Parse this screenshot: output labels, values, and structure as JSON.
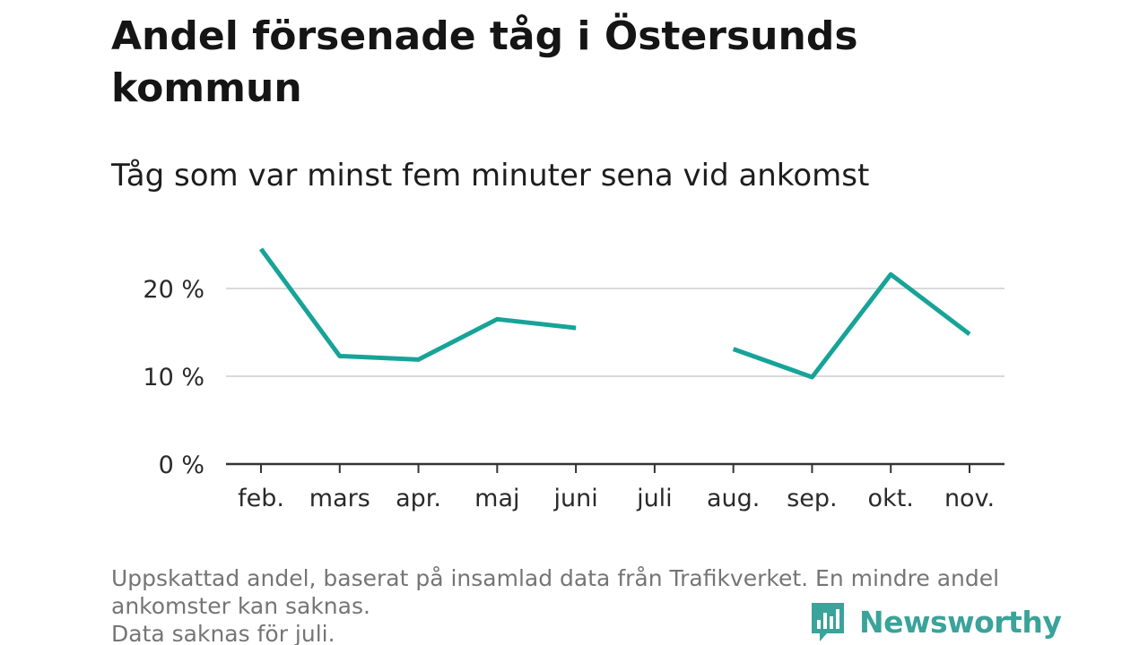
{
  "title": "Andel försenade tåg i Östersunds kommun",
  "subtitle": "Tåg som var minst fem minuter sena vid ankomst",
  "footnote": {
    "line1": "Uppskattad andel, baserat på insamlad data från Trafikverket. En mindre andel ankomster kan saknas.",
    "line2": "Data saknas för juli."
  },
  "brand": {
    "name": "Newsworthy",
    "icon": "newsworthy-logo-icon"
  },
  "colors": {
    "line": "#17a398",
    "grid": "#d9d9d9",
    "axis": "#333333",
    "brand": "#3aa39a"
  },
  "chart_data": {
    "type": "line",
    "title": "Andel försenade tåg i Östersunds kommun",
    "subtitle": "Tåg som var minst fem minuter sena vid ankomst",
    "categories": [
      "feb.",
      "mars",
      "apr.",
      "maj",
      "juni",
      "juli",
      "aug.",
      "sep.",
      "okt.",
      "nov."
    ],
    "series": [
      {
        "values": [
          24.5,
          12.3,
          11.9,
          16.5,
          15.5,
          null,
          13.1,
          9.9,
          21.6,
          14.8
        ]
      }
    ],
    "y_ticks": [
      0,
      10,
      20
    ],
    "y_tick_labels": [
      "0 %",
      "10 %",
      "20 %"
    ],
    "ylim": [
      0,
      25
    ],
    "unit": "%",
    "grid": "horizontal",
    "legend": "none",
    "xlabel": "",
    "ylabel": ""
  }
}
